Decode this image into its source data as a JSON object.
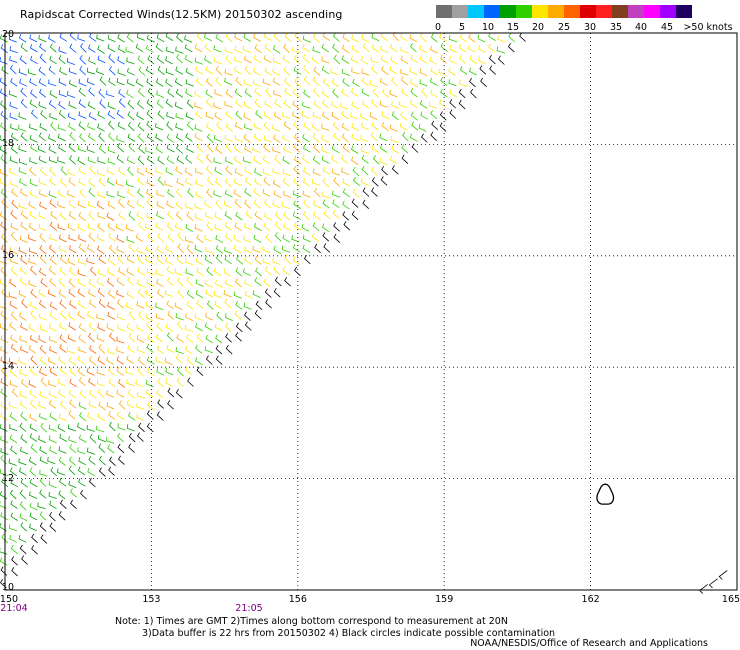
{
  "title": "Rapidscat Corrected Winds(12.5KM) 20150302 ascending",
  "legend": {
    "colors": [
      "#707070",
      "#a0a0a0",
      "#00c8ff",
      "#0064ff",
      "#00a000",
      "#30d000",
      "#ffe600",
      "#ffaa00",
      "#ff6400",
      "#e00000",
      "#ff2020",
      "#804020",
      "#c040c0",
      "#ff00ff",
      "#a000ff",
      "#200060"
    ],
    "labels": [
      "0",
      "5",
      "10",
      "15",
      "20",
      "25",
      "30",
      "35",
      "40",
      "45",
      ">50 knots"
    ]
  },
  "map": {
    "lon_range": [
      150,
      165
    ],
    "lat_range": [
      10,
      20
    ],
    "x_ticks": [
      "150",
      "153",
      "156",
      "159",
      "162",
      "165"
    ],
    "y_ticks": [
      "20",
      "18",
      "16",
      "14",
      "12",
      "10"
    ],
    "times": [
      {
        "label": "21:04",
        "lon": 150
      },
      {
        "label": "21:05",
        "lon": 155
      }
    ],
    "swath_edge": [
      [
        150,
        10
      ],
      [
        161,
        20
      ]
    ],
    "contamination_circle": {
      "lon": 162.3,
      "lat": 11.7
    }
  },
  "notes": {
    "line1": "Note: 1) Times are GMT 2)Times along bottom correspond to measurement at 20N",
    "line2": "3)Data buffer is 22 hrs from 20150302 4) Black circles indicate possible contamination",
    "credit": "NOAA/NESDIS/Office of Research and Applications"
  }
}
